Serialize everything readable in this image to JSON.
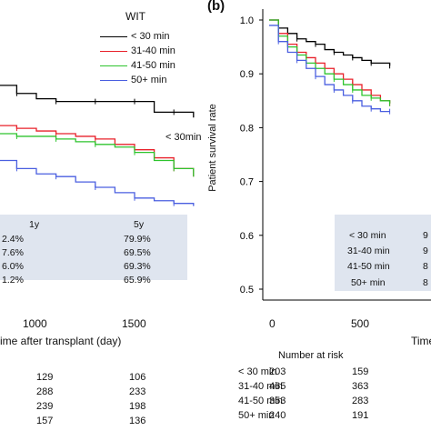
{
  "figure": {
    "panel_b_label": "(b)",
    "legend_title": "WIT",
    "legend": [
      {
        "label": "< 30 min",
        "color": "#000000"
      },
      {
        "label": "31-40 min",
        "color": "#e8202a"
      },
      {
        "label": "41-50 min",
        "color": "#2ec42e"
      },
      {
        "label": "50+ min",
        "color": "#4a5fe0"
      }
    ],
    "panel_a": {
      "xticks": [
        "1000",
        "1500"
      ],
      "xlabel": "ime after transplant (day)",
      "curve_label": "< 30min",
      "table": {
        "headers": [
          "1y",
          "5y"
        ],
        "rows": [
          [
            "2.4%",
            "79.9%"
          ],
          [
            "7.6%",
            "69.5%"
          ],
          [
            "6.0%",
            "69.3%"
          ],
          [
            "1.2%",
            "65.9%"
          ]
        ]
      },
      "risk_rows": [
        [
          "129",
          "106"
        ],
        [
          "288",
          "233"
        ],
        [
          "239",
          "198"
        ],
        [
          "157",
          "136"
        ]
      ]
    },
    "panel_b": {
      "ylabel": "Patient survival rate",
      "yticks": [
        "1.0",
        "0.9",
        "0.8",
        "0.7",
        "0.6",
        "0.5"
      ],
      "xticks": [
        "0",
        "500"
      ],
      "xlabel": "Time",
      "table": {
        "rows": [
          [
            "< 30 min",
            "9"
          ],
          [
            "31-40 min",
            "9"
          ],
          [
            "41-50 min",
            "8"
          ],
          [
            "50+ min",
            "8"
          ]
        ]
      },
      "risk_title": "Number at risk",
      "risk_rows": [
        [
          "< 30 min",
          "203",
          "159"
        ],
        [
          "31-40 min",
          "465",
          "363"
        ],
        [
          "41-50 min",
          "353",
          "283"
        ],
        [
          "50+ min",
          "240",
          "191"
        ]
      ]
    }
  },
  "chart_data": [
    {
      "type": "line",
      "panel": "a (partially visible)",
      "xlabel": "ime after transplant (day)",
      "xticks": [
        1000,
        1500
      ],
      "series": [
        {
          "name": "< 30 min",
          "color": "#000000",
          "x": [
            550,
            650,
            750,
            900,
            1000,
            1100,
            1200,
            1300,
            1400,
            1500,
            1600,
            1700,
            1800
          ],
          "y": [
            0.93,
            0.91,
            0.89,
            0.875,
            0.865,
            0.86,
            0.86,
            0.86,
            0.86,
            0.86,
            0.84,
            0.84,
            0.83
          ]
        },
        {
          "name": "31-40 min",
          "color": "#e8202a",
          "x": [
            550,
            650,
            750,
            900,
            1000,
            1100,
            1200,
            1300,
            1400,
            1500,
            1600,
            1700,
            1800
          ],
          "y": [
            0.825,
            0.82,
            0.815,
            0.81,
            0.805,
            0.8,
            0.795,
            0.79,
            0.78,
            0.77,
            0.755,
            0.735,
            0.72
          ]
        },
        {
          "name": "41-50 min",
          "color": "#2ec42e",
          "x": [
            550,
            650,
            750,
            900,
            1000,
            1100,
            1200,
            1300,
            1400,
            1500,
            1600,
            1700,
            1800
          ],
          "y": [
            0.81,
            0.805,
            0.8,
            0.795,
            0.795,
            0.79,
            0.785,
            0.78,
            0.775,
            0.765,
            0.75,
            0.735,
            0.72
          ]
        },
        {
          "name": "50+ min",
          "color": "#4a5fe0",
          "x": [
            550,
            650,
            750,
            900,
            1000,
            1100,
            1200,
            1300,
            1400,
            1500,
            1600,
            1700,
            1800
          ],
          "y": [
            0.77,
            0.76,
            0.75,
            0.735,
            0.725,
            0.72,
            0.71,
            0.7,
            0.69,
            0.68,
            0.675,
            0.67,
            0.665
          ]
        }
      ]
    },
    {
      "type": "line",
      "panel": "b",
      "ylabel": "Patient survival rate",
      "ylim": [
        0.5,
        1.0
      ],
      "xticks": [
        0,
        500
      ],
      "series": [
        {
          "name": "< 30 min",
          "color": "#000000",
          "x": [
            0,
            50,
            100,
            150,
            200,
            250,
            300,
            350,
            400,
            450,
            500,
            550,
            600,
            650
          ],
          "y": [
            1.0,
            0.985,
            0.975,
            0.965,
            0.96,
            0.955,
            0.945,
            0.94,
            0.935,
            0.93,
            0.925,
            0.92,
            0.92,
            0.915
          ]
        },
        {
          "name": "31-40 min",
          "color": "#e8202a",
          "x": [
            0,
            50,
            100,
            150,
            200,
            250,
            300,
            350,
            400,
            450,
            500,
            550,
            600,
            650
          ],
          "y": [
            1.0,
            0.975,
            0.955,
            0.94,
            0.93,
            0.92,
            0.91,
            0.9,
            0.89,
            0.88,
            0.87,
            0.86,
            0.85,
            0.845
          ]
        },
        {
          "name": "41-50 min",
          "color": "#2ec42e",
          "x": [
            0,
            50,
            100,
            150,
            200,
            250,
            300,
            350,
            400,
            450,
            500,
            550,
            600,
            650
          ],
          "y": [
            1.0,
            0.97,
            0.95,
            0.935,
            0.92,
            0.91,
            0.9,
            0.89,
            0.88,
            0.87,
            0.86,
            0.855,
            0.85,
            0.845
          ]
        },
        {
          "name": "50+ min",
          "color": "#4a5fe0",
          "x": [
            0,
            50,
            100,
            150,
            200,
            250,
            300,
            350,
            400,
            450,
            500,
            550,
            600,
            650
          ],
          "y": [
            0.99,
            0.96,
            0.94,
            0.925,
            0.91,
            0.895,
            0.88,
            0.87,
            0.86,
            0.85,
            0.84,
            0.835,
            0.83,
            0.83
          ]
        }
      ]
    }
  ]
}
